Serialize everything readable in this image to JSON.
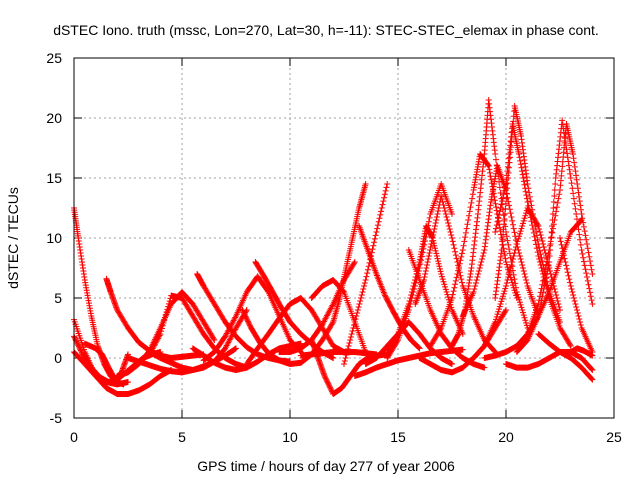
{
  "chart_data": {
    "type": "scatter",
    "title": "dSTEC Iono. truth (mssc, Lon=270, Lat=30, h=-11): STEC-STEC_elemax in phase cont.",
    "xlabel": "GPS time / hours of day 277 of year 2006",
    "ylabel": "dSTEC  / TECUs",
    "xlim": [
      0,
      25
    ],
    "ylim": [
      -5,
      25
    ],
    "xticks": [
      0,
      5,
      10,
      15,
      20,
      25
    ],
    "yticks": [
      -5,
      0,
      5,
      10,
      15,
      20,
      25
    ],
    "grid": true,
    "marker": "+",
    "color": "#ff0000",
    "series": [
      {
        "x": [
          0.0,
          0.2,
          0.5,
          0.8,
          1.1,
          1.4,
          1.7,
          2.0,
          2.3
        ],
        "y": [
          12.5,
          10.0,
          6.5,
          3.5,
          1.0,
          -0.5,
          -1.5,
          -2.0,
          -2.2
        ]
      },
      {
        "x": [
          0.0,
          0.5,
          1.0,
          1.5,
          2.0,
          2.5,
          3.0,
          3.5,
          4.0,
          4.5
        ],
        "y": [
          3.2,
          0.5,
          -1.5,
          -2.5,
          -3.0,
          -3.0,
          -2.7,
          -2.2,
          -1.5,
          -1.0
        ]
      },
      {
        "x": [
          0.0,
          0.4,
          0.8,
          1.2,
          1.6,
          2.0,
          2.4,
          2.8,
          3.2,
          3.6,
          4.0
        ],
        "y": [
          1.8,
          0.3,
          -0.8,
          -1.6,
          -2.0,
          -1.8,
          -1.2,
          -0.6,
          0.0,
          0.3,
          0.5
        ]
      },
      {
        "x": [
          0.0,
          0.5,
          1.0,
          1.5,
          2.0,
          2.5
        ],
        "y": [
          0.5,
          -0.5,
          -1.5,
          -2.0,
          -2.2,
          -2.0
        ]
      },
      {
        "x": [
          0.5,
          1.0,
          1.3,
          1.6,
          1.9,
          2.2,
          2.5
        ],
        "y": [
          1.2,
          0.8,
          0.3,
          -0.8,
          -1.8,
          -1.2,
          0.3
        ]
      },
      {
        "x": [
          1.5,
          1.7,
          2.0,
          2.5,
          3.0,
          3.5,
          4.0,
          4.5,
          5.0,
          5.5,
          6.0
        ],
        "y": [
          6.6,
          5.5,
          4.0,
          2.5,
          1.3,
          0.6,
          0.2,
          0.0,
          0.1,
          0.2,
          0.3
        ]
      },
      {
        "x": [
          2.0,
          2.5,
          3.0,
          3.5,
          4.0,
          4.5,
          5.0,
          5.5,
          6.0,
          6.5
        ],
        "y": [
          -1.5,
          -1.2,
          -0.5,
          0.6,
          2.5,
          4.5,
          5.5,
          4.5,
          3.0,
          1.5
        ]
      },
      {
        "x": [
          3.5,
          4.0,
          4.5,
          5.0,
          5.5,
          6.0,
          6.5,
          7.0,
          7.5,
          8.0
        ],
        "y": [
          0.3,
          2.0,
          5.2,
          5.0,
          3.5,
          2.0,
          0.8,
          0.0,
          -0.5,
          -0.8
        ]
      },
      {
        "x": [
          2.5,
          3.0,
          3.5,
          4.0,
          4.5,
          5.0,
          5.5,
          6.0,
          6.5,
          7.0,
          7.5
        ],
        "y": [
          0.0,
          -0.3,
          -0.6,
          -0.9,
          -1.1,
          -1.2,
          -1.0,
          -0.7,
          -0.3,
          0.2,
          0.8
        ]
      },
      {
        "x": [
          3.5,
          4.0,
          4.5,
          5.0,
          5.5,
          6.0,
          6.5,
          7.0,
          7.5,
          8.0
        ],
        "y": [
          0.5,
          0.0,
          -0.4,
          -0.8,
          -1.0,
          -0.8,
          -0.3,
          0.8,
          2.5,
          4.0
        ]
      },
      {
        "x": [
          5.7,
          6.0,
          6.5,
          7.0,
          7.5,
          8.0,
          8.5,
          9.0,
          9.5,
          10.0
        ],
        "y": [
          7.0,
          6.0,
          4.5,
          3.0,
          1.8,
          0.9,
          0.3,
          0.0,
          -0.2,
          -0.3
        ]
      },
      {
        "x": [
          5.5,
          6.0,
          6.5,
          7.0,
          7.5,
          8.0,
          8.5,
          9.0,
          9.5,
          10.0,
          10.5
        ],
        "y": [
          0.8,
          0.2,
          -0.4,
          -0.8,
          -1.0,
          -0.8,
          -0.3,
          0.3,
          0.8,
          1.0,
          1.2
        ]
      },
      {
        "x": [
          6.0,
          6.5,
          7.0,
          7.5,
          8.0,
          8.5,
          9.0,
          9.5,
          10.0,
          10.5
        ],
        "y": [
          -0.2,
          0.5,
          1.8,
          3.5,
          5.5,
          6.8,
          5.5,
          3.5,
          1.5,
          0.5
        ]
      },
      {
        "x": [
          7.8,
          8.2,
          8.6,
          9.0,
          9.5,
          10.0,
          10.5,
          11.0,
          11.5,
          12.0
        ],
        "y": [
          4.0,
          2.5,
          1.3,
          0.4,
          -0.2,
          -0.5,
          -0.4,
          0.3,
          1.5,
          3.0
        ]
      },
      {
        "x": [
          8.4,
          8.8,
          9.2,
          9.6,
          10.0,
          10.5,
          11.0,
          11.5,
          12.0
        ],
        "y": [
          8.0,
          6.8,
          5.5,
          4.2,
          3.0,
          2.0,
          1.2,
          0.5,
          0.0
        ]
      },
      {
        "x": [
          8.0,
          8.5,
          9.0,
          9.5,
          10.0,
          10.5,
          11.0,
          11.5,
          12.0,
          12.5
        ],
        "y": [
          -0.5,
          0.8,
          2.0,
          3.3,
          4.5,
          5.0,
          4.0,
          2.5,
          1.0,
          0.5
        ]
      },
      {
        "x": [
          9.5,
          10.0,
          10.5,
          11.0,
          11.5,
          12.0,
          12.5,
          13.0
        ],
        "y": [
          0.5,
          0.5,
          0.8,
          1.5,
          2.8,
          4.5,
          6.5,
          8.0
        ]
      },
      {
        "x": [
          11.0,
          11.3,
          11.6,
          12.0,
          12.4,
          12.8,
          13.2,
          13.6,
          14.0,
          14.5
        ],
        "y": [
          1.5,
          0.0,
          -1.5,
          -3.0,
          -2.5,
          -1.5,
          -0.5,
          0.0,
          0.2,
          0.3
        ]
      },
      {
        "x": [
          11.0,
          11.5,
          12.0,
          12.5,
          13.0,
          13.5
        ],
        "y": [
          5.0,
          6.0,
          6.5,
          5.5,
          3.0,
          0.5
        ]
      },
      {
        "x": [
          10.5,
          11.0,
          11.5,
          12.0,
          12.5,
          13.0,
          13.5,
          14.0
        ],
        "y": [
          0.2,
          0.3,
          0.4,
          0.5,
          0.5,
          0.5,
          0.4,
          0.3
        ]
      },
      {
        "x": [
          12.0,
          12.3,
          12.6,
          12.9,
          13.2,
          13.5
        ],
        "y": [
          3.0,
          5.0,
          7.5,
          10.0,
          12.5,
          14.5
        ]
      },
      {
        "x": [
          12.5,
          13.0,
          13.5,
          14.0,
          14.5
        ],
        "y": [
          -0.5,
          3.0,
          6.5,
          10.5,
          14.5
        ]
      },
      {
        "x": [
          13.2,
          13.6,
          14.0,
          14.4,
          14.8,
          15.2,
          15.6,
          16.0
        ],
        "y": [
          11.0,
          9.0,
          7.0,
          5.2,
          3.8,
          2.5,
          1.5,
          0.8
        ]
      },
      {
        "x": [
          13.5,
          14.0,
          14.5,
          15.0,
          15.5,
          16.0,
          16.5,
          17.0,
          17.5
        ],
        "y": [
          -0.5,
          0.0,
          1.0,
          2.0,
          3.0,
          2.0,
          0.8,
          0.0,
          -0.5
        ]
      },
      {
        "x": [
          13.0,
          13.5,
          14.0,
          14.5,
          15.0,
          15.5,
          16.0,
          16.5,
          17.0,
          17.5,
          18.0
        ],
        "y": [
          -1.5,
          -1.2,
          -0.8,
          -0.5,
          -0.2,
          0.0,
          0.2,
          0.4,
          0.5,
          0.6,
          0.7
        ]
      },
      {
        "x": [
          14.5,
          15.0,
          15.5,
          16.0,
          16.3,
          16.6,
          17.0,
          17.5,
          18.0
        ],
        "y": [
          0.5,
          2.0,
          4.5,
          8.0,
          11.0,
          10.0,
          7.0,
          4.0,
          2.0
        ]
      },
      {
        "x": [
          14.5,
          15.0,
          15.5,
          16.0,
          16.5,
          17.0,
          17.5
        ],
        "y": [
          0.0,
          1.5,
          4.0,
          7.5,
          12.0,
          14.5,
          12.0
        ]
      },
      {
        "x": [
          15.5,
          16.0,
          16.5,
          17.0,
          17.5,
          18.0,
          18.5,
          19.0
        ],
        "y": [
          9.0,
          6.5,
          4.0,
          2.0,
          0.8,
          0.0,
          -0.5,
          -0.8
        ]
      },
      {
        "x": [
          15.8,
          16.2,
          16.6,
          17.0,
          17.5,
          18.0,
          18.5,
          19.0,
          19.5
        ],
        "y": [
          4.5,
          6.5,
          10.0,
          13.5,
          10.0,
          6.0,
          3.5,
          1.5,
          0.5
        ]
      },
      {
        "x": [
          16.0,
          16.5,
          17.0,
          17.5,
          18.0,
          18.5,
          19.0,
          19.5,
          20.0
        ],
        "y": [
          0.0,
          -0.5,
          -1.0,
          -1.2,
          -0.8,
          0.0,
          1.0,
          2.5,
          4.0
        ]
      },
      {
        "x": [
          16.5,
          17.0,
          17.5,
          18.0,
          18.5,
          18.8,
          19.2,
          19.6,
          20.0,
          20.5
        ],
        "y": [
          1.0,
          2.5,
          5.0,
          9.0,
          14.0,
          17.0,
          16.0,
          12.0,
          8.0,
          5.0
        ]
      },
      {
        "x": [
          17.5,
          17.8,
          18.1,
          18.4,
          18.7,
          19.0,
          19.2,
          19.5,
          20.0,
          20.5,
          21.0
        ],
        "y": [
          1.0,
          2.0,
          4.0,
          7.5,
          12.0,
          17.0,
          21.5,
          17.0,
          10.5,
          5.5,
          2.5
        ]
      },
      {
        "x": [
          18.0,
          18.5,
          19.0,
          19.3,
          19.6,
          20.0,
          20.5,
          21.0,
          21.5
        ],
        "y": [
          3.5,
          5.5,
          9.0,
          13.0,
          16.0,
          14.0,
          9.5,
          6.0,
          3.5
        ]
      },
      {
        "x": [
          18.5,
          19.0,
          19.5,
          20.0,
          20.5,
          21.0,
          21.5,
          22.0,
          22.5
        ],
        "y": [
          0.0,
          1.0,
          3.0,
          6.0,
          9.5,
          12.5,
          11.0,
          7.5,
          4.0
        ]
      },
      {
        "x": [
          19.5,
          19.8,
          20.1,
          20.4,
          20.7,
          21.0,
          21.5,
          22.0,
          22.5
        ],
        "y": [
          5.0,
          9.0,
          15.0,
          21.0,
          18.5,
          14.5,
          9.5,
          5.5,
          3.0
        ]
      },
      {
        "x": [
          19.5,
          20.0,
          20.3,
          20.6,
          21.0,
          21.5,
          22.0,
          22.5,
          23.0
        ],
        "y": [
          10.5,
          14.5,
          19.5,
          17.0,
          13.0,
          8.5,
          5.0,
          2.5,
          1.0
        ]
      },
      {
        "x": [
          19.0,
          19.5,
          20.0,
          20.5,
          21.0,
          21.5,
          22.0,
          22.5,
          23.0,
          23.5
        ],
        "y": [
          0.0,
          0.2,
          0.5,
          1.0,
          2.0,
          3.5,
          5.5,
          8.0,
          10.5,
          11.5
        ]
      },
      {
        "x": [
          20.5,
          21.0,
          21.5,
          22.0,
          22.3,
          22.6,
          23.0,
          23.5,
          24.0
        ],
        "y": [
          0.5,
          1.5,
          3.5,
          8.0,
          15.0,
          19.8,
          15.0,
          9.0,
          4.5
        ]
      },
      {
        "x": [
          21.0,
          21.5,
          22.0,
          22.5,
          22.8,
          23.1,
          23.5,
          24.0
        ],
        "y": [
          2.0,
          4.5,
          9.0,
          14.0,
          19.5,
          17.0,
          12.0,
          7.0
        ]
      },
      {
        "x": [
          20.0,
          20.5,
          21.0,
          21.5,
          22.0,
          22.5,
          23.0,
          23.5,
          24.0
        ],
        "y": [
          -0.5,
          -0.8,
          -0.8,
          -0.5,
          0.0,
          0.5,
          0.5,
          0.0,
          -1.0
        ]
      },
      {
        "x": [
          21.5,
          22.0,
          22.5,
          23.0,
          23.5,
          24.0
        ],
        "y": [
          2.0,
          1.2,
          0.5,
          0.0,
          -0.8,
          -1.8
        ]
      },
      {
        "x": [
          22.5,
          23.0,
          23.5,
          24.0
        ],
        "y": [
          10.0,
          6.0,
          2.5,
          0.5
        ]
      },
      {
        "x": [
          23.0,
          23.3,
          23.6,
          24.0
        ],
        "y": [
          0.5,
          0.8,
          0.6,
          0.2
        ]
      }
    ]
  }
}
